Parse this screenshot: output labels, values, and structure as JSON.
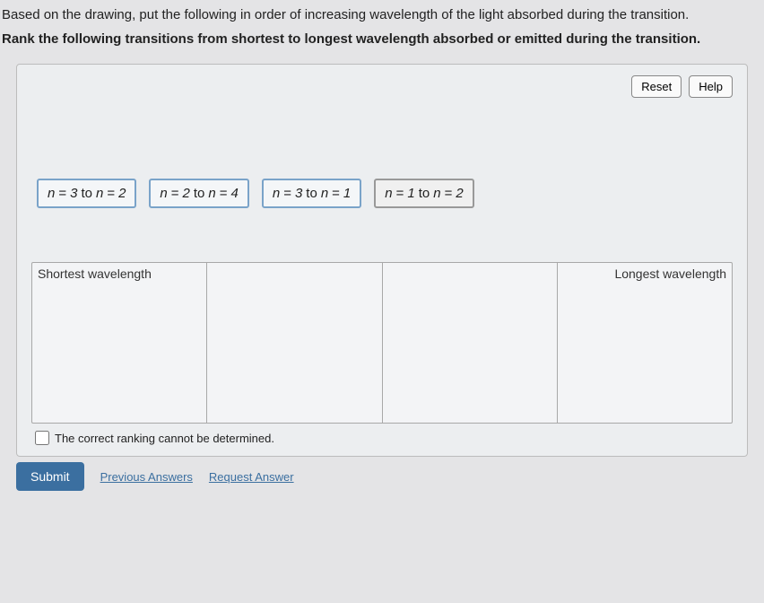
{
  "question": {
    "line1": "Based on the drawing, put the following in order of increasing wavelength of the light absorbed during the transition.",
    "line2": "Rank the following transitions from shortest to longest wavelength absorbed or emitted during the transition."
  },
  "toolbar": {
    "reset": "Reset",
    "help": "Help"
  },
  "items": [
    {
      "from": "3",
      "to": "2",
      "placed": false
    },
    {
      "from": "2",
      "to": "4",
      "placed": false
    },
    {
      "from": "3",
      "to": "1",
      "placed": false
    },
    {
      "from": "1",
      "to": "2",
      "placed": true
    }
  ],
  "ranking": {
    "leftLabel": "Shortest wavelength",
    "rightLabel": "Longest wavelength",
    "slotCount": 4
  },
  "cannotDetermine": {
    "label": "The correct ranking cannot be determined.",
    "checked": false
  },
  "footer": {
    "submit": "Submit",
    "previous": "Previous Answers",
    "request": "Request Answer"
  },
  "colors": {
    "background": "#e4e4e6",
    "panel": "#eceef0",
    "itemBorder": "#7aa3c9",
    "submitBg": "#3b6fa0"
  }
}
